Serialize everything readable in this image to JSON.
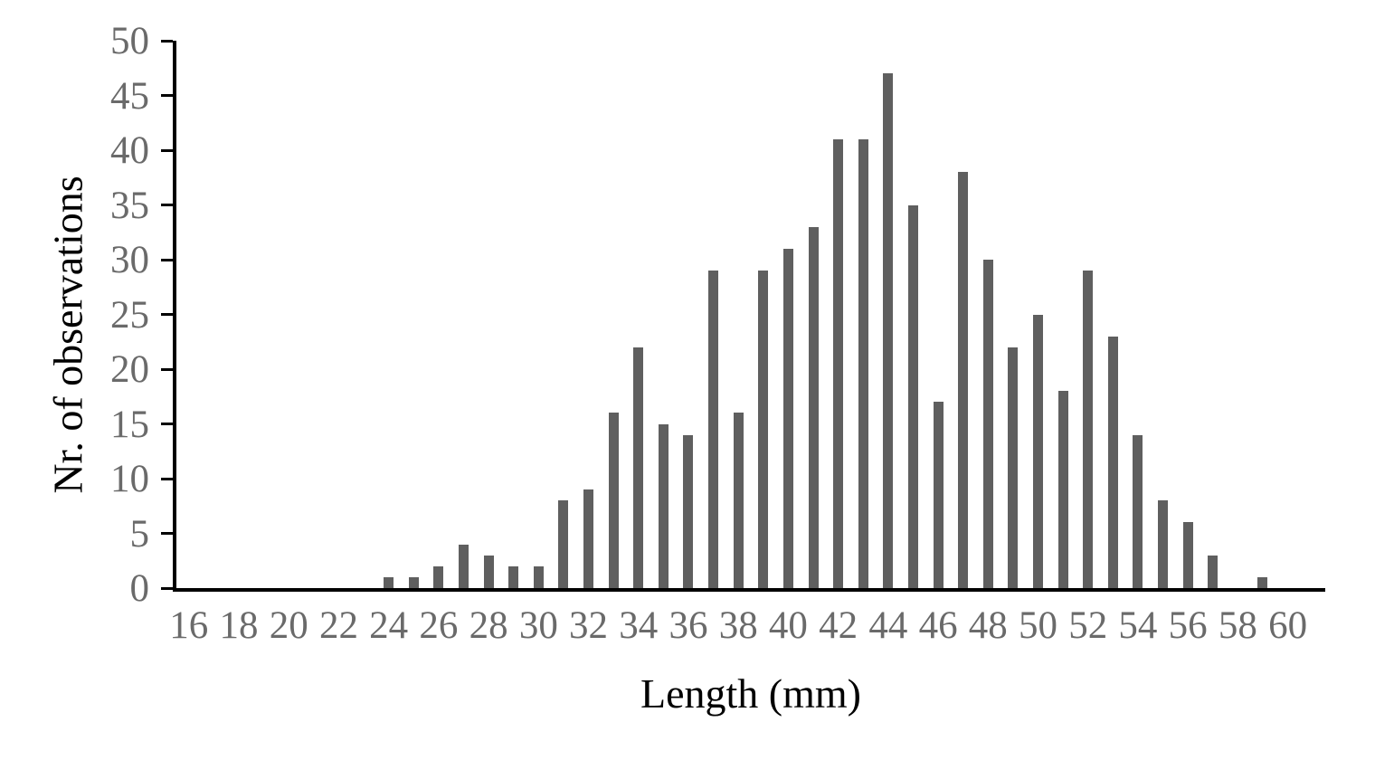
{
  "page": {
    "background": "#ffffff"
  },
  "chart_data": {
    "type": "bar",
    "title": "",
    "xlabel": "Length (mm)",
    "ylabel": "Nr. of observations",
    "categories": [
      16,
      17,
      18,
      19,
      20,
      21,
      22,
      23,
      24,
      25,
      26,
      27,
      28,
      29,
      30,
      31,
      32,
      33,
      34,
      35,
      36,
      37,
      38,
      39,
      40,
      41,
      42,
      43,
      44,
      45,
      46,
      47,
      48,
      49,
      50,
      51,
      52,
      53,
      54,
      55,
      56,
      57,
      58,
      59,
      60,
      61
    ],
    "values": [
      0,
      0,
      0,
      0,
      0,
      0,
      0,
      0,
      1,
      1,
      2,
      4,
      3,
      2,
      2,
      8,
      9,
      16,
      22,
      15,
      14,
      29,
      16,
      29,
      31,
      33,
      41,
      41,
      47,
      35,
      17,
      38,
      30,
      22,
      25,
      18,
      29,
      23,
      14,
      8,
      6,
      3,
      0,
      1,
      0,
      0
    ],
    "x_tick_labels": [
      16,
      18,
      20,
      22,
      24,
      26,
      28,
      30,
      32,
      34,
      36,
      38,
      40,
      42,
      44,
      46,
      48,
      50,
      52,
      54,
      56,
      58,
      60
    ],
    "y_ticks": [
      0,
      5,
      10,
      15,
      20,
      25,
      30,
      35,
      40,
      45,
      50
    ],
    "xlim": [
      15.5,
      61.5
    ],
    "ylim": [
      0,
      50
    ],
    "grid": false,
    "legend": "none",
    "bar_color": "#5f5f5f",
    "axis_color": "#000000",
    "tick_label_color": "#6a6a6a",
    "axis_title_color": "#000000"
  }
}
